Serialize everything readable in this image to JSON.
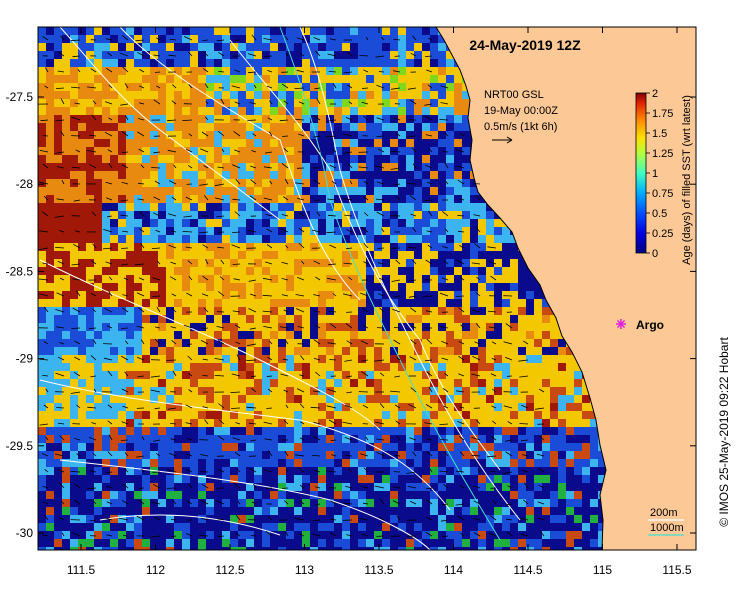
{
  "title": "24-May-2019 12Z",
  "current_info": {
    "line1": "NRT00 GSL",
    "line2": "19-May 00:00Z",
    "line3": "0.5m/s (1kt 6h)"
  },
  "colorbar": {
    "label": "Age (days) of filled SST (wrt latest)",
    "ticks": [
      "0",
      "0.25",
      "0.5",
      "0.75",
      "1",
      "1.25",
      "1.5",
      "1.75",
      "2"
    ],
    "colors": [
      "#00007f",
      "#0000d8",
      "#0066ff",
      "#00bfff",
      "#5fff9f",
      "#bfff3f",
      "#ffdf00",
      "#ff8c00",
      "#d02000",
      "#7f0000"
    ]
  },
  "marker": {
    "label": "Argo",
    "color": "#e020e0"
  },
  "axes": {
    "x_ticks": [
      "111.5",
      "112",
      "112.5",
      "113",
      "113.5",
      "114",
      "114.5",
      "115",
      "115.5"
    ],
    "y_ticks": [
      "-27.5",
      "-28",
      "-28.5",
      "-29",
      "-29.5",
      "-30"
    ]
  },
  "depth_legend": {
    "label_200": "200m",
    "label_1000": "1000m",
    "color_1000": "#40e0d0"
  },
  "credit": "© IMOS 25-May-2019 09:22 Hobart",
  "colors": {
    "land": "#fbc896",
    "contour": "#ffffff",
    "ocean_palette": [
      "#0a0a8c",
      "#1a4cd8",
      "#3cb4f0",
      "#2ec4c8",
      "#f4c800",
      "#e88a10",
      "#c84a10",
      "#a01808",
      "#7fd820",
      "#20b040"
    ]
  }
}
